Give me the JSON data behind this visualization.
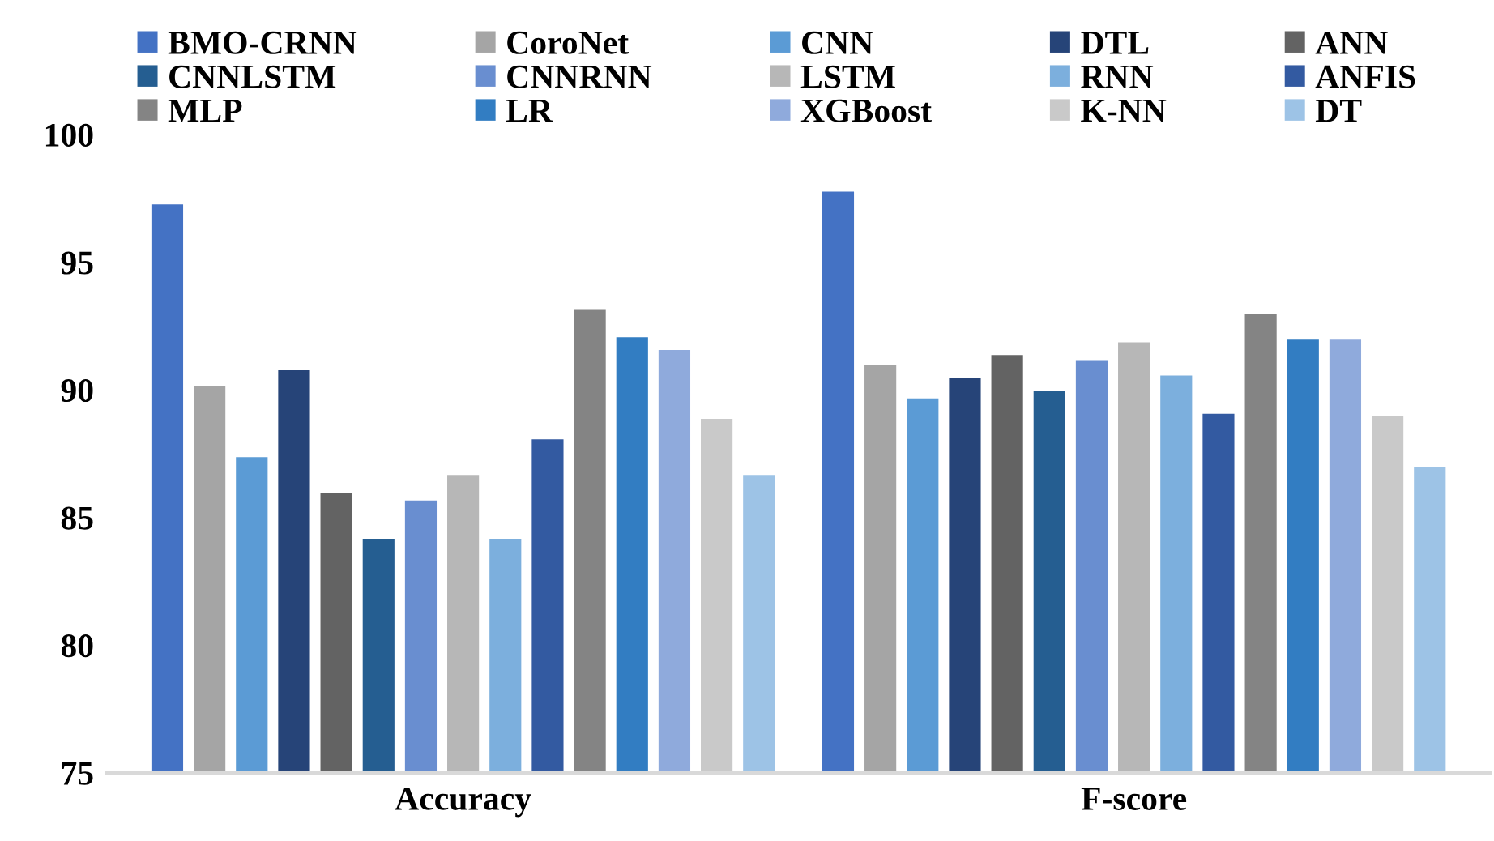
{
  "chart_data": {
    "type": "bar",
    "categories": [
      "Accuracy",
      "F-score"
    ],
    "ylim": [
      75,
      100
    ],
    "yticks": [
      75,
      80,
      85,
      90,
      95,
      100
    ],
    "grid": false,
    "legend": "top",
    "series": [
      {
        "name": "BMO-CRNN",
        "color": "#4472c4",
        "values": [
          97.3,
          97.8
        ]
      },
      {
        "name": "CoroNet",
        "color": "#a5a5a5",
        "values": [
          90.2,
          91.0
        ]
      },
      {
        "name": "CNN",
        "color": "#5b9bd5",
        "values": [
          87.4,
          89.7
        ]
      },
      {
        "name": "DTL",
        "color": "#264478",
        "values": [
          90.8,
          90.5
        ]
      },
      {
        "name": "ANN",
        "color": "#636363",
        "values": [
          86.0,
          91.4
        ]
      },
      {
        "name": "CNNLSTM",
        "color": "#255e91",
        "values": [
          84.2,
          90.0
        ]
      },
      {
        "name": "CNNRNN",
        "color": "#698ed0",
        "values": [
          85.7,
          91.2
        ]
      },
      {
        "name": "LSTM",
        "color": "#b7b7b7",
        "values": [
          86.7,
          91.9
        ]
      },
      {
        "name": "RNN",
        "color": "#7cafdd",
        "values": [
          84.2,
          90.6
        ]
      },
      {
        "name": "ANFIS",
        "color": "#335aa1",
        "values": [
          88.1,
          89.1
        ]
      },
      {
        "name": "MLP",
        "color": "#848484",
        "values": [
          93.2,
          93.0
        ]
      },
      {
        "name": "LR",
        "color": "#327dc2",
        "values": [
          92.1,
          92.0
        ]
      },
      {
        "name": "XGBoost",
        "color": "#8faadc",
        "values": [
          91.6,
          92.0
        ]
      },
      {
        "name": "K-NN",
        "color": "#c9c9c9",
        "values": [
          88.9,
          89.0
        ]
      },
      {
        "name": "DT",
        "color": "#9dc3e6",
        "values": [
          86.7,
          87.0
        ]
      }
    ]
  }
}
